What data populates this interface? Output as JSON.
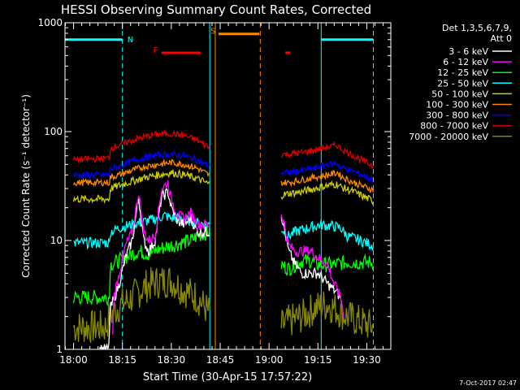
{
  "chart_data": {
    "type": "line",
    "title": "HESSI Observing Summary Count Rates, Corrected",
    "xlabel": "Start Time (30-Apr-15 17:57:22)",
    "ylabel": "Corrected Count Rate (s⁻¹ detector⁻¹)",
    "y_scale": "log",
    "ylim": [
      1,
      1000
    ],
    "xlim": [
      -2.63,
      97.37
    ],
    "x_unit": "minutes after 18:00",
    "grid": false,
    "legend_position": "top-right, outside plot",
    "x_ticks": [
      {
        "t": 0,
        "label": "18:00"
      },
      {
        "t": 15,
        "label": "18:15"
      },
      {
        "t": 30,
        "label": "18:30"
      },
      {
        "t": 45,
        "label": "18:45"
      },
      {
        "t": 60,
        "label": "19:00"
      },
      {
        "t": 75,
        "label": "19:15"
      },
      {
        "t": 90,
        "label": "19:30"
      }
    ],
    "y_ticks": [
      {
        "v": 1,
        "label": "1"
      },
      {
        "v": 10,
        "label": "10"
      },
      {
        "v": 100,
        "label": "100"
      },
      {
        "v": 1000,
        "label": "1000"
      }
    ],
    "legend_header": [
      "Det 1,3,5,6,7,9,",
      "Att 0"
    ],
    "footer_date": "7-Oct-2017 02:47",
    "gaps": [
      [
        41.8,
        63.6
      ]
    ],
    "series": [
      {
        "name": "3 - 6 keV",
        "color": "#ffffff",
        "noise": 0.05,
        "points": [
          [
            8,
            1
          ],
          [
            10.8,
            1
          ],
          [
            11.2,
            2.3
          ],
          [
            14,
            4
          ],
          [
            16,
            7
          ],
          [
            18,
            10
          ],
          [
            20,
            25
          ],
          [
            21.5,
            10
          ],
          [
            23,
            8
          ],
          [
            25,
            10
          ],
          [
            27,
            25
          ],
          [
            29,
            28
          ],
          [
            30,
            20
          ],
          [
            32,
            15
          ],
          [
            34,
            14
          ],
          [
            36,
            16
          ],
          [
            38,
            12
          ],
          [
            41.5,
            12
          ],
          [
            63.6,
            18
          ],
          [
            64.5,
            14
          ],
          [
            66,
            8
          ],
          [
            68,
            6
          ],
          [
            70,
            5
          ],
          [
            73,
            5
          ],
          [
            75,
            5
          ],
          [
            78,
            4
          ],
          [
            80,
            3.5
          ],
          [
            82,
            3
          ]
        ]
      },
      {
        "name": "6 - 12 keV",
        "color": "#ff00ff",
        "noise": 0.05,
        "points": [
          [
            12,
            1.3
          ],
          [
            12.3,
            3
          ],
          [
            14,
            5
          ],
          [
            16,
            9
          ],
          [
            18,
            12
          ],
          [
            20,
            28
          ],
          [
            21.5,
            12
          ],
          [
            23,
            10
          ],
          [
            25,
            11
          ],
          [
            27,
            30
          ],
          [
            29,
            34
          ],
          [
            30,
            24
          ],
          [
            32,
            17
          ],
          [
            34,
            16
          ],
          [
            36,
            18
          ],
          [
            38,
            14
          ],
          [
            41.5,
            14
          ],
          [
            63.6,
            18
          ],
          [
            64.5,
            15
          ],
          [
            66,
            9
          ],
          [
            68,
            8
          ],
          [
            70,
            8
          ],
          [
            73,
            8
          ],
          [
            75,
            7
          ],
          [
            78,
            6
          ],
          [
            80,
            4
          ],
          [
            82,
            3
          ],
          [
            83,
            2
          ]
        ]
      },
      {
        "name": "12 - 25 keV",
        "color": "#00ff00",
        "noise": 0.07,
        "points": [
          [
            0,
            3
          ],
          [
            11,
            3
          ],
          [
            11.2,
            6
          ],
          [
            14,
            6.5
          ],
          [
            16,
            7
          ],
          [
            18,
            7.5
          ],
          [
            20,
            8
          ],
          [
            23,
            7.5
          ],
          [
            25,
            8
          ],
          [
            27,
            8.5
          ],
          [
            30,
            9
          ],
          [
            33,
            9.5
          ],
          [
            36,
            10
          ],
          [
            38,
            11
          ],
          [
            41.5,
            12
          ],
          [
            63.6,
            6
          ],
          [
            66,
            5.5
          ],
          [
            68,
            6
          ],
          [
            70,
            6.5
          ],
          [
            73,
            6.5
          ],
          [
            75,
            6
          ],
          [
            80,
            6
          ],
          [
            82,
            6.2
          ],
          [
            84,
            6.3
          ],
          [
            92,
            6.3
          ]
        ]
      },
      {
        "name": "25 - 50 keV",
        "color": "#00ffff",
        "noise": 0.05,
        "points": [
          [
            0,
            9.5
          ],
          [
            11,
            9.5
          ],
          [
            11.2,
            12
          ],
          [
            14,
            13
          ],
          [
            18,
            14
          ],
          [
            22,
            15
          ],
          [
            26,
            16
          ],
          [
            28,
            17
          ],
          [
            30,
            16
          ],
          [
            33,
            16
          ],
          [
            36,
            15
          ],
          [
            38,
            14.5
          ],
          [
            41.5,
            14
          ],
          [
            63.6,
            13
          ],
          [
            66,
            11
          ],
          [
            68,
            12
          ],
          [
            72,
            13
          ],
          [
            76,
            14
          ],
          [
            80,
            13.5
          ],
          [
            82,
            13
          ],
          [
            84,
            11
          ],
          [
            88,
            10
          ],
          [
            92,
            9
          ]
        ]
      },
      {
        "name": "50 - 100 keV",
        "color": "#cccc00",
        "noise": 0.035,
        "points": [
          [
            0,
            24
          ],
          [
            11,
            24
          ],
          [
            11.2,
            30
          ],
          [
            14,
            32
          ],
          [
            18,
            35
          ],
          [
            22,
            38
          ],
          [
            26,
            40
          ],
          [
            30,
            42
          ],
          [
            34,
            40
          ],
          [
            38,
            37
          ],
          [
            41.5,
            33
          ],
          [
            63.6,
            26
          ],
          [
            66,
            27
          ],
          [
            70,
            28
          ],
          [
            74,
            30
          ],
          [
            78,
            32
          ],
          [
            81,
            33
          ],
          [
            82,
            31
          ],
          [
            86,
            28
          ],
          [
            92,
            23
          ]
        ]
      },
      {
        "name": "100 - 300 keV",
        "color": "#ff8800",
        "noise": 0.03,
        "points": [
          [
            0,
            34
          ],
          [
            11,
            34
          ],
          [
            11.2,
            38
          ],
          [
            14,
            40
          ],
          [
            18,
            44
          ],
          [
            22,
            48
          ],
          [
            26,
            50
          ],
          [
            30,
            52
          ],
          [
            34,
            50
          ],
          [
            38,
            46
          ],
          [
            41.5,
            40
          ],
          [
            63.6,
            34
          ],
          [
            66,
            34
          ],
          [
            70,
            36
          ],
          [
            74,
            38
          ],
          [
            78,
            40
          ],
          [
            81,
            42
          ],
          [
            82,
            39
          ],
          [
            86,
            34
          ],
          [
            92,
            29
          ]
        ]
      },
      {
        "name": "300 - 800 keV",
        "color": "#0000ff",
        "noise": 0.03,
        "points": [
          [
            0,
            40
          ],
          [
            11,
            40
          ],
          [
            11.2,
            45
          ],
          [
            14,
            48
          ],
          [
            18,
            54
          ],
          [
            22,
            58
          ],
          [
            26,
            61
          ],
          [
            30,
            62
          ],
          [
            34,
            60
          ],
          [
            38,
            55
          ],
          [
            41.5,
            48
          ],
          [
            63.6,
            42
          ],
          [
            66,
            42
          ],
          [
            70,
            44
          ],
          [
            74,
            46
          ],
          [
            78,
            50
          ],
          [
            81,
            51
          ],
          [
            82,
            47
          ],
          [
            86,
            43
          ],
          [
            92,
            36
          ]
        ]
      },
      {
        "name": "800 - 7000 keV",
        "color": "#dd0000",
        "noise": 0.03,
        "points": [
          [
            0,
            55
          ],
          [
            11,
            57
          ],
          [
            11.2,
            70
          ],
          [
            14,
            75
          ],
          [
            18,
            83
          ],
          [
            22,
            90
          ],
          [
            26,
            95
          ],
          [
            30,
            96
          ],
          [
            34,
            92
          ],
          [
            38,
            83
          ],
          [
            41.5,
            72
          ],
          [
            63.6,
            62
          ],
          [
            66,
            62
          ],
          [
            70,
            64
          ],
          [
            74,
            68
          ],
          [
            78,
            72
          ],
          [
            81,
            75
          ],
          [
            82,
            70
          ],
          [
            86,
            60
          ],
          [
            92,
            48
          ]
        ]
      },
      {
        "name": "7000 - 20000 keV",
        "color": "#888800",
        "noise": 0.16,
        "points": [
          [
            0,
            1.6
          ],
          [
            10,
            1.6
          ],
          [
            11,
            2
          ],
          [
            14,
            2.5
          ],
          [
            18,
            3
          ],
          [
            22,
            3.8
          ],
          [
            26,
            4.2
          ],
          [
            30,
            4.3
          ],
          [
            34,
            3.5
          ],
          [
            38,
            3
          ],
          [
            41.5,
            2.2
          ],
          [
            63.6,
            1.6
          ],
          [
            66,
            1.8
          ],
          [
            70,
            2
          ],
          [
            74,
            2.4
          ],
          [
            78,
            2.6
          ],
          [
            80,
            2.4
          ],
          [
            84,
            2
          ],
          [
            88,
            1.8
          ],
          [
            92,
            1.6
          ]
        ]
      }
    ],
    "flags": [
      {
        "label": "N",
        "color": "#00ffff",
        "value": 700,
        "ranges": [
          [
            -2.63,
            15
          ],
          [
            76,
            92
          ]
        ]
      },
      {
        "label": "F",
        "color": "#ff0000",
        "value": 530,
        "ranges": [
          [
            27,
            39
          ],
          [
            65,
            66.5
          ]
        ]
      },
      {
        "label": "S",
        "color": "#ff8800",
        "value": 790,
        "ranges": [
          [
            44.5,
            57
          ]
        ]
      }
    ],
    "vertical_lines": [
      {
        "color": "#00ffff",
        "t": 15,
        "dashed": true
      },
      {
        "color": "#00ffff",
        "t": 41.8,
        "dashed": false
      },
      {
        "color": "#00ffff",
        "t": 76,
        "dashed": false
      },
      {
        "color": "#00ffff",
        "t": 92,
        "dashed": true
      },
      {
        "color": "#ff8800",
        "t": 43.5,
        "dashed": false
      },
      {
        "color": "#ff8800",
        "t": 57.3,
        "dashed": true
      }
    ]
  }
}
